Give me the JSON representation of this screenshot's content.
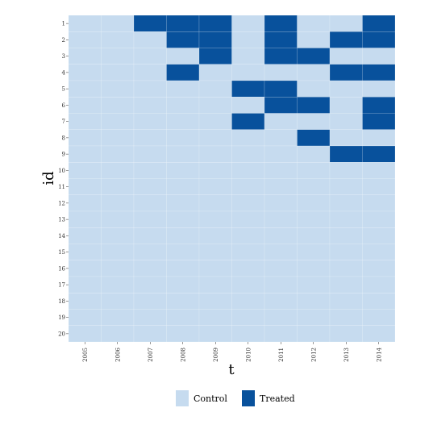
{
  "chart_data": {
    "type": "heatmap",
    "title": "",
    "xlabel": "t",
    "ylabel": "id",
    "x": [
      "2005",
      "2006",
      "2007",
      "2008",
      "2009",
      "2010",
      "2011",
      "2012",
      "2013",
      "2014"
    ],
    "y": [
      "1",
      "2",
      "3",
      "4",
      "5",
      "6",
      "7",
      "8",
      "9",
      "10",
      "11",
      "12",
      "13",
      "14",
      "15",
      "16",
      "17",
      "18",
      "19",
      "20"
    ],
    "treated": {
      "1": [
        "2007",
        "2008",
        "2009",
        "2011",
        "2014"
      ],
      "2": [
        "2008",
        "2009",
        "2011",
        "2013",
        "2014"
      ],
      "3": [
        "2009",
        "2011",
        "2012"
      ],
      "4": [
        "2008",
        "2013",
        "2014"
      ],
      "5": [
        "2010",
        "2011"
      ],
      "6": [
        "2011",
        "2012",
        "2014"
      ],
      "7": [
        "2010",
        "2014"
      ],
      "8": [
        "2012"
      ],
      "9": [
        "2013",
        "2014"
      ]
    },
    "legend": {
      "placement": "bottom",
      "items": [
        {
          "label": "Control",
          "color": "#c6dbef"
        },
        {
          "label": "Treated",
          "color": "#08519c"
        }
      ]
    },
    "grid": true
  }
}
